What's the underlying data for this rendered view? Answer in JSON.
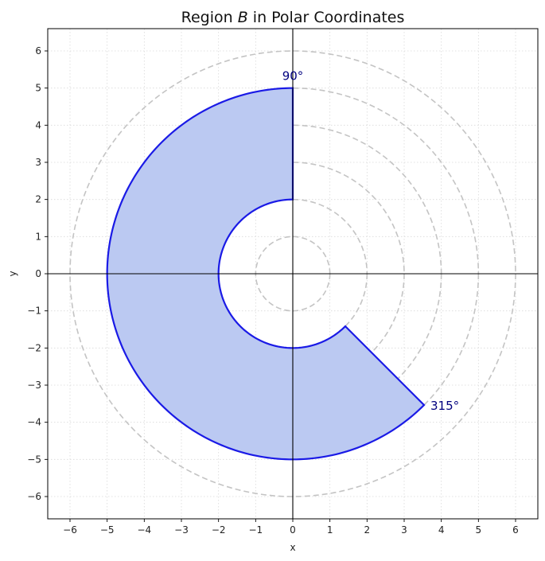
{
  "chart_data": {
    "type": "area",
    "title": "Region B in Polar Coordinates",
    "title_parts": [
      "Region ",
      "B",
      " in Polar Coordinates"
    ],
    "xlabel": "x",
    "ylabel": "y",
    "xlim": [
      -6.6,
      6.6
    ],
    "ylim": [
      -6.6,
      6.6
    ],
    "xticks": [
      -6,
      -5,
      -4,
      -3,
      -2,
      -1,
      0,
      1,
      2,
      3,
      4,
      5,
      6
    ],
    "yticks": [
      -6,
      -5,
      -4,
      -3,
      -2,
      -1,
      0,
      1,
      2,
      3,
      4,
      5,
      6
    ],
    "grid": true,
    "reference_circles_r": [
      1,
      2,
      3,
      4,
      5,
      6
    ],
    "region": {
      "r_inner": 2,
      "r_outer": 5,
      "theta_start_deg": 90,
      "theta_end_deg": 315,
      "fill_color": "#bbc9f2",
      "edge_color": "#1a1ae6"
    },
    "annotations": [
      {
        "text": "90°",
        "degrees": 90
      },
      {
        "text": "315°",
        "degrees": 315
      }
    ]
  }
}
